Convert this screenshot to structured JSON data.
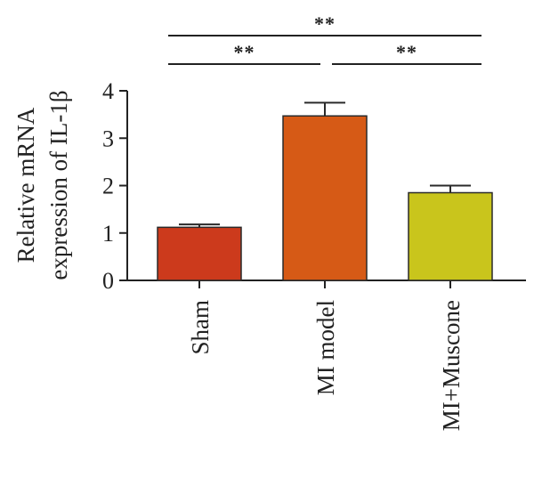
{
  "chart_data": {
    "type": "bar",
    "categories": [
      "Sham",
      "MI model",
      "MI+Muscone"
    ],
    "values": [
      1.12,
      3.47,
      1.85
    ],
    "errors": [
      0.06,
      0.28,
      0.15
    ],
    "colors": [
      "#cc3a1c",
      "#d65a16",
      "#c9c51c"
    ],
    "ylabel_line1": "Relative mRNA",
    "ylabel_line2": "expression of IL-1β",
    "ylim": [
      0,
      4
    ],
    "yticks": [
      "0",
      "1",
      "2",
      "3",
      "4"
    ],
    "grid": false,
    "significance": [
      {
        "from": 0,
        "to": 1,
        "label": "**"
      },
      {
        "from": 1,
        "to": 2,
        "label": "**"
      },
      {
        "from": 0,
        "to": 2,
        "label": "**"
      }
    ]
  }
}
